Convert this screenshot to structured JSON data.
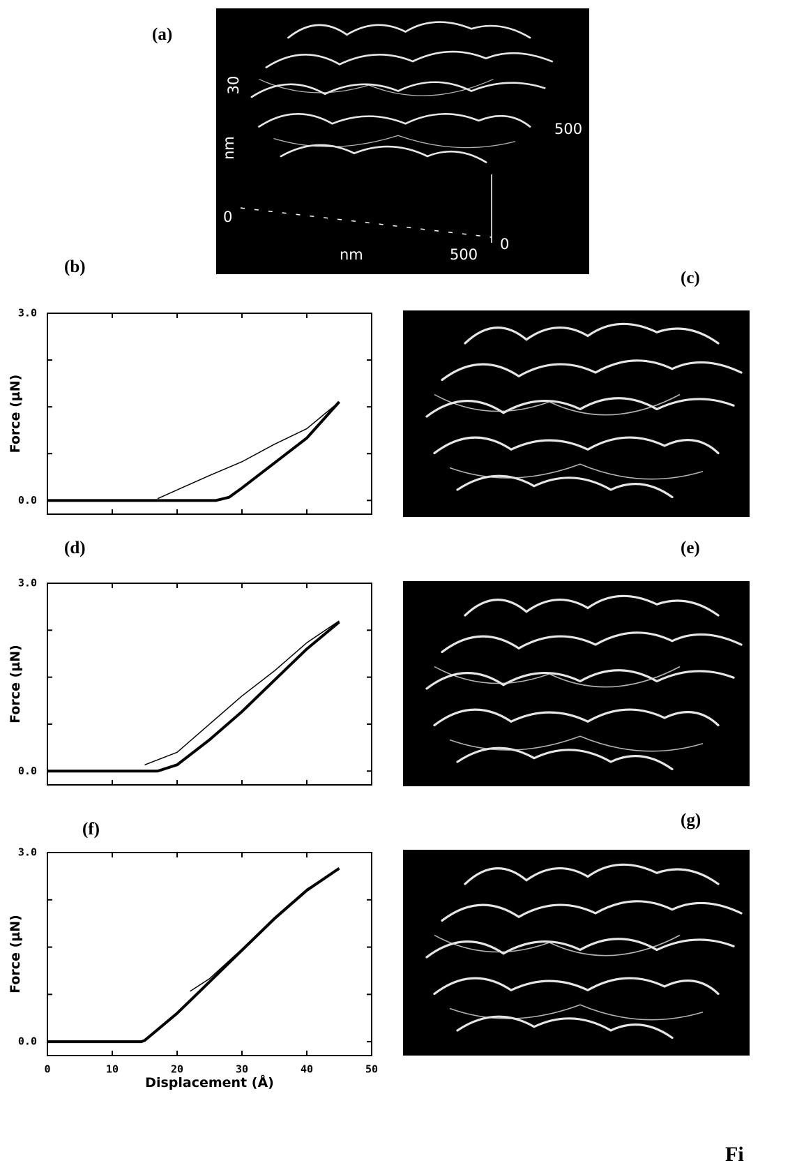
{
  "panel_labels": [
    "(a)",
    "(b)",
    "(c)",
    "(d)",
    "(e)",
    "(f)",
    "(g)"
  ],
  "image_a_labels": [
    "30",
    "nm",
    "500",
    "0",
    "nm",
    "500",
    "0"
  ],
  "figure_label": "Fi",
  "chart_data": [
    {
      "type": "line",
      "ylabel": "Force  (µN)",
      "xlim": [
        0,
        50
      ],
      "ylim": [
        -0.22,
        3.0
      ],
      "xticks": [
        0,
        10,
        20,
        30,
        40,
        50
      ],
      "show_xtick_labels": false,
      "yticks": [
        {
          "value": 0,
          "label": "0.0"
        },
        {
          "value": 3,
          "label": "3.0"
        }
      ],
      "yminor": [
        0.75,
        1.5,
        2.25
      ],
      "series": [
        {
          "color": "#000",
          "width": 4,
          "x": [
            0,
            26,
            28,
            30,
            35,
            40,
            45
          ],
          "values": [
            0,
            0,
            0.05,
            0.2,
            0.6,
            1.0,
            1.58
          ]
        },
        {
          "color": "#000",
          "width": 1.5,
          "x": [
            17,
            25,
            30,
            35,
            40,
            45
          ],
          "values": [
            0.03,
            0.4,
            0.62,
            0.9,
            1.15,
            1.58
          ]
        }
      ]
    },
    {
      "type": "line",
      "ylabel": "Force  (µN)",
      "xlim": [
        0,
        50
      ],
      "ylim": [
        -0.22,
        3.0
      ],
      "xticks": [
        0,
        10,
        20,
        30,
        40,
        50
      ],
      "show_xtick_labels": false,
      "yticks": [
        {
          "value": 0,
          "label": "0.0"
        },
        {
          "value": 3,
          "label": "3.0"
        }
      ],
      "yminor": [
        0.75,
        1.5,
        2.25
      ],
      "series": [
        {
          "color": "#000",
          "width": 4,
          "x": [
            0,
            17,
            20,
            25,
            30,
            35,
            40,
            45
          ],
          "values": [
            0,
            0,
            0.1,
            0.5,
            0.95,
            1.45,
            1.95,
            2.38
          ]
        },
        {
          "color": "#000",
          "width": 1.5,
          "x": [
            15,
            20,
            25,
            30,
            35,
            40,
            45
          ],
          "values": [
            0.1,
            0.3,
            0.75,
            1.2,
            1.6,
            2.05,
            2.4
          ]
        }
      ]
    },
    {
      "type": "line",
      "ylabel": "Force  (µN)",
      "xlabel": "Displacement  (Å)",
      "xlim": [
        0,
        50
      ],
      "ylim": [
        -0.22,
        3.0
      ],
      "xticks": [
        0,
        10,
        20,
        30,
        40,
        50
      ],
      "show_xtick_labels": true,
      "yticks": [
        {
          "value": 0,
          "label": "0.0"
        },
        {
          "value": 3,
          "label": "3.0"
        }
      ],
      "yminor": [
        0.75,
        1.5,
        2.25
      ],
      "series": [
        {
          "color": "#000",
          "width": 4,
          "x": [
            0,
            14.5,
            15,
            20,
            25,
            30,
            35,
            40,
            45
          ],
          "values": [
            0,
            0,
            0.02,
            0.45,
            0.95,
            1.45,
            1.95,
            2.4,
            2.75
          ]
        },
        {
          "color": "#000",
          "width": 1.5,
          "x": [
            22,
            25,
            30,
            35,
            40,
            45
          ],
          "values": [
            0.8,
            1.0,
            1.47,
            1.97,
            2.42,
            2.75
          ]
        }
      ]
    }
  ]
}
